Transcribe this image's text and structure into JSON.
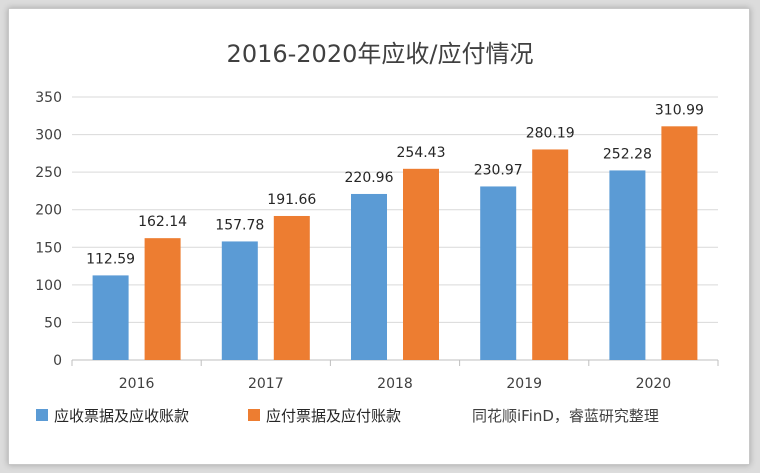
{
  "chart_data": {
    "type": "bar",
    "title": "2016-2020年应收/应付情况",
    "categories": [
      "2016",
      "2017",
      "2018",
      "2019",
      "2020"
    ],
    "series": [
      {
        "name": "应收票据及应收账款",
        "color": "#5b9bd5",
        "values": [
          112.59,
          157.78,
          220.96,
          230.97,
          252.28
        ]
      },
      {
        "name": "应付票据及应付账款",
        "color": "#ed7d31",
        "values": [
          162.14,
          191.66,
          254.43,
          280.19,
          310.99
        ]
      }
    ],
    "y_ticks": [
      0,
      50,
      100,
      150,
      200,
      250,
      300,
      350
    ],
    "ylim": [
      0,
      350
    ],
    "grid": true,
    "legend": "bottom-left",
    "source": "同花顺iFinD，睿蓝研究整理"
  }
}
